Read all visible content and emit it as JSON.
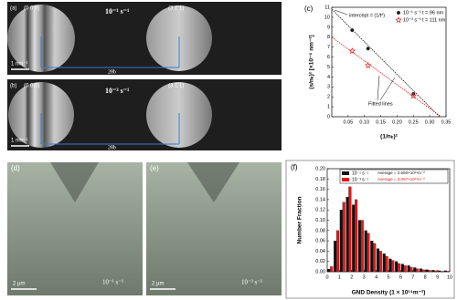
{
  "images": [
    {
      "label": "(a)",
      "spots": [
        "(0 0 0)",
        "(3 1̄ 1)"
      ],
      "rate": "10⁻¹ s⁻¹",
      "scale": "1 nm⁻¹",
      "angle": "2θb"
    },
    {
      "label": "(b)",
      "spots": [
        "(0 0 0)",
        "(3 1̄ 1)"
      ],
      "rate": "10⁻³ s⁻¹",
      "scale": "1 nm⁻¹",
      "angle": "2θb"
    },
    {
      "label": "(d)",
      "rate": "10⁻¹ s⁻¹",
      "scale": "2 μm"
    },
    {
      "label": "(e)",
      "rate": "10⁻³ s⁻¹",
      "scale": "2 μm"
    }
  ],
  "chart_data": [
    {
      "type": "scatter",
      "label": "(c)",
      "xlabel": "(1/nₖ)²",
      "ylabel": "(s/nₖ)² [×10⁻⁶ nm⁻²]",
      "xlim": [
        0,
        0.35
      ],
      "ylim": [
        0,
        11
      ],
      "xticks": [
        0.05,
        {
          "value": 0.1,
          "label": "0.10"
        },
        0.15,
        {
          "value": 0.2,
          "label": "0.20"
        },
        0.25,
        {
          "value": 0.3,
          "label": "0.30"
        },
        0.35
      ],
      "yticks": [
        0,
        1,
        2,
        3,
        4,
        5,
        6,
        7,
        8,
        9,
        10,
        11
      ],
      "series": [
        {
          "name": "10⁻¹ s⁻¹",
          "label": "t = 96 nm",
          "color": "#1a1a1a",
          "marker": "circle",
          "x": [
            0.0625,
            0.111,
            0.25
          ],
          "values": [
            8.7,
            6.85,
            2.3
          ]
        },
        {
          "name": "10⁻³ s⁻¹",
          "label": "t = 111 nm",
          "color": "#e02020",
          "marker": "star",
          "x": [
            0.0625,
            0.111,
            0.25
          ],
          "values": [
            6.6,
            5.15,
            2.1
          ]
        }
      ],
      "fits": [
        {
          "color": "#1a1a1a",
          "x": [
            0,
            0.33
          ],
          "values": [
            10.8,
            0
          ]
        },
        {
          "color": "#e02020",
          "x": [
            0,
            0.335
          ],
          "values": [
            8.0,
            0
          ]
        }
      ],
      "annotations": [
        "intercept = (1/t²)",
        "Fitted lines"
      ]
    },
    {
      "type": "histogram",
      "label": "(f)",
      "xlabel": "GND Density (1 × 10¹⁴m⁻²)",
      "ylabel": "Number Fraction",
      "xlim": [
        0,
        10
      ],
      "ylim": [
        0,
        0.2
      ],
      "xticks": [
        0,
        1,
        2,
        3,
        4,
        5,
        6,
        7,
        8,
        9,
        10
      ],
      "yticks": [
        {
          "value": 0,
          "label": "0.00"
        },
        0.02,
        0.04,
        0.06,
        0.08,
        {
          "value": 0.1,
          "label": "0.10"
        },
        0.12,
        0.14,
        0.16,
        0.18,
        {
          "value": 0.2,
          "label": "0.20"
        }
      ],
      "bins": [
        0,
        0.5,
        1,
        1.5,
        2,
        2.5,
        3,
        3.5,
        4,
        4.5,
        5,
        5.5,
        6,
        6.5,
        7,
        7.5,
        8,
        8.5,
        9,
        9.5,
        10
      ],
      "series": [
        {
          "name": "10⁻¹ s⁻¹",
          "note": "Average = 2.650×10¹⁴m⁻²",
          "color": "#111111",
          "values": [
            0.005,
            0.06,
            0.12,
            0.145,
            0.13,
            0.1,
            0.08,
            0.06,
            0.045,
            0.035,
            0.025,
            0.02,
            0.015,
            0.012,
            0.008,
            0.006,
            0.004,
            0.003,
            0.002,
            0.002
          ]
        },
        {
          "name": "10⁻³ s⁻¹",
          "note": "Average = 3.067×10¹⁴m⁻²",
          "color": "#e01818",
          "values": [
            0.01,
            0.08,
            0.135,
            0.165,
            0.14,
            0.1,
            0.075,
            0.055,
            0.04,
            0.03,
            0.022,
            0.016,
            0.012,
            0.009,
            0.006,
            0.004,
            0.003,
            0.002,
            0.001,
            0.001
          ]
        }
      ]
    }
  ]
}
